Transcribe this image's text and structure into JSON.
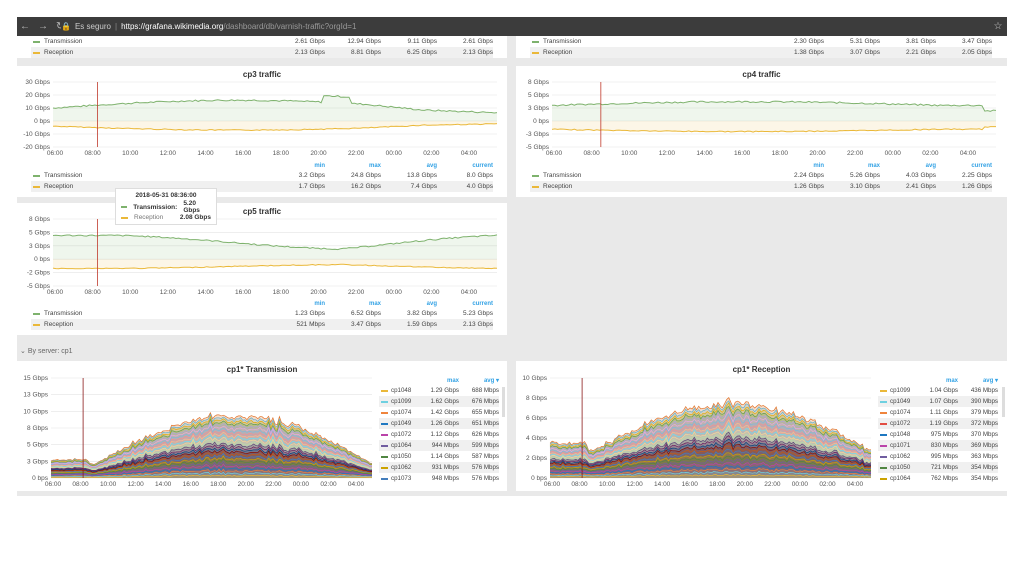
{
  "browser": {
    "secure_label": "Es seguro",
    "url_domain": "https://grafana.wikimedia.org",
    "url_path": "/dashboard/db/varnish-traffic?orgId=1"
  },
  "colors": {
    "transmission": "#7eb26d",
    "reception": "#eab839"
  },
  "top_strip": {
    "left": {
      "rows": [
        {
          "name": "Transmission",
          "min": "2.61 Gbps",
          "max": "12.94 Gbps",
          "avg": "9.11 Gbps",
          "current": "2.61 Gbps"
        },
        {
          "name": "Reception",
          "min": "2.13 Gbps",
          "max": "8.81 Gbps",
          "avg": "6.25 Gbps",
          "current": "2.13 Gbps"
        }
      ]
    },
    "right": {
      "rows": [
        {
          "name": "Transmission",
          "min": "2.30 Gbps",
          "max": "5.31 Gbps",
          "avg": "3.81 Gbps",
          "current": "3.47 Gbps"
        },
        {
          "name": "Reception",
          "min": "1.38 Gbps",
          "max": "3.07 Gbps",
          "avg": "2.21 Gbps",
          "current": "2.05 Gbps"
        }
      ]
    }
  },
  "legend_headers": {
    "min": "min",
    "max": "max",
    "avg": "avg",
    "current": "current"
  },
  "x_ticks": [
    "06:00",
    "08:00",
    "10:00",
    "12:00",
    "14:00",
    "16:00",
    "18:00",
    "20:00",
    "22:00",
    "00:00",
    "02:00",
    "04:00"
  ],
  "panels": {
    "cp3": {
      "title": "cp3 traffic",
      "y_ticks": [
        "30 Gbps",
        "20 Gbps",
        "10 Gbps",
        "0 bps",
        "-10 Gbps",
        "-20 Gbps"
      ],
      "rows": [
        {
          "name": "Transmission",
          "min": "3.2 Gbps",
          "max": "24.8 Gbps",
          "avg": "13.8 Gbps",
          "current": "8.0 Gbps"
        },
        {
          "name": "Reception",
          "min": "1.7 Gbps",
          "max": "16.2 Gbps",
          "avg": "7.4 Gbps",
          "current": "4.0 Gbps"
        }
      ]
    },
    "cp4": {
      "title": "cp4 traffic",
      "y_ticks": [
        "8 Gbps",
        "5 Gbps",
        "3 Gbps",
        "0 bps",
        "-3 Gbps",
        "-5 Gbps"
      ],
      "rows": [
        {
          "name": "Transmission",
          "min": "2.24 Gbps",
          "max": "5.26 Gbps",
          "avg": "4.03 Gbps",
          "current": "2.25 Gbps"
        },
        {
          "name": "Reception",
          "min": "1.26 Gbps",
          "max": "3.10 Gbps",
          "avg": "2.41 Gbps",
          "current": "1.26 Gbps"
        }
      ]
    },
    "cp5": {
      "title": "cp5 traffic",
      "y_ticks": [
        "8 Gbps",
        "5 Gbps",
        "3 Gbps",
        "0 bps",
        "-2 Gbps",
        "-5 Gbps"
      ],
      "rows": [
        {
          "name": "Transmission",
          "min": "1.23 Gbps",
          "max": "6.52 Gbps",
          "avg": "3.82 Gbps",
          "current": "5.23 Gbps"
        },
        {
          "name": "Reception",
          "min": "521 Mbps",
          "max": "3.47 Gbps",
          "avg": "1.59 Gbps",
          "current": "2.13 Gbps"
        }
      ],
      "tooltip": {
        "time": "2018-05-31 08:36:00",
        "tx_label": "Transmission:",
        "tx_value": "5.20 Gbps",
        "rx_label": "Reception",
        "rx_value": "2.08 Gbps"
      }
    },
    "cp1_tx": {
      "title": "cp1* Transmission",
      "y_ticks": [
        "15 Gbps",
        "13 Gbps",
        "10 Gbps",
        "8 Gbps",
        "5 Gbps",
        "3 Gbps",
        "0 bps"
      ],
      "head_max": "max",
      "head_avg": "avg ▾",
      "rows": [
        {
          "name": "cp1048",
          "max": "1.29 Gbps",
          "avg": "688 Mbps",
          "color": "#eab839"
        },
        {
          "name": "cp1099",
          "max": "1.62 Gbps",
          "avg": "676 Mbps",
          "color": "#6ed0e0"
        },
        {
          "name": "cp1074",
          "max": "1.42 Gbps",
          "avg": "655 Mbps",
          "color": "#ef843c"
        },
        {
          "name": "cp1049",
          "max": "1.26 Gbps",
          "avg": "651 Mbps",
          "color": "#1f78c1"
        },
        {
          "name": "cp1072",
          "max": "1.12 Gbps",
          "avg": "626 Mbps",
          "color": "#ba43a9"
        },
        {
          "name": "cp1064",
          "max": "944 Mbps",
          "avg": "599 Mbps",
          "color": "#705da0"
        },
        {
          "name": "cp1050",
          "max": "1.14 Gbps",
          "avg": "587 Mbps",
          "color": "#508642"
        },
        {
          "name": "cp1062",
          "max": "931 Mbps",
          "avg": "576 Mbps",
          "color": "#cca300"
        },
        {
          "name": "cp1073",
          "max": "948 Mbps",
          "avg": "576 Mbps",
          "color": "#447ebc"
        }
      ]
    },
    "cp1_rx": {
      "title": "cp1* Reception",
      "y_ticks": [
        "10 Gbps",
        "8 Gbps",
        "6 Gbps",
        "4 Gbps",
        "2 Gbps",
        "0 bps"
      ],
      "head_max": "max",
      "head_avg": "avg ▾",
      "rows": [
        {
          "name": "cp1099",
          "max": "1.04 Gbps",
          "avg": "436 Mbps",
          "color": "#eab839"
        },
        {
          "name": "cp1049",
          "max": "1.07 Gbps",
          "avg": "390 Mbps",
          "color": "#6ed0e0"
        },
        {
          "name": "cp1074",
          "max": "1.11 Gbps",
          "avg": "379 Mbps",
          "color": "#ef843c"
        },
        {
          "name": "cp1072",
          "max": "1.19 Gbps",
          "avg": "372 Mbps",
          "color": "#e24d42"
        },
        {
          "name": "cp1048",
          "max": "975 Mbps",
          "avg": "370 Mbps",
          "color": "#1f78c1"
        },
        {
          "name": "cp1071",
          "max": "830 Mbps",
          "avg": "369 Mbps",
          "color": "#ba43a9"
        },
        {
          "name": "cp1062",
          "max": "995 Mbps",
          "avg": "363 Mbps",
          "color": "#705da0"
        },
        {
          "name": "cp1050",
          "max": "721 Mbps",
          "avg": "354 Mbps",
          "color": "#508642"
        },
        {
          "name": "cp1064",
          "max": "762 Mbps",
          "avg": "354 Mbps",
          "color": "#cca300"
        }
      ]
    }
  },
  "row_header": "By server: cp1",
  "stack_colors": [
    "#eab839",
    "#6ed0e0",
    "#ef843c",
    "#1f78c1",
    "#ba43a9",
    "#705da0",
    "#508642",
    "#cca300",
    "#447ebc",
    "#c15c17",
    "#890f02",
    "#0a437c",
    "#6d1f62",
    "#584477",
    "#b7dbab",
    "#f4d598",
    "#70dbed",
    "#f9ba8f",
    "#f29191",
    "#82b5d8",
    "#e5a8e2",
    "#aea2e0",
    "#629e51",
    "#e5ac0e",
    "#64b0c8",
    "#e0752d",
    "#bf1b00",
    "#0a50a1",
    "#962d82",
    "#614d93"
  ]
}
